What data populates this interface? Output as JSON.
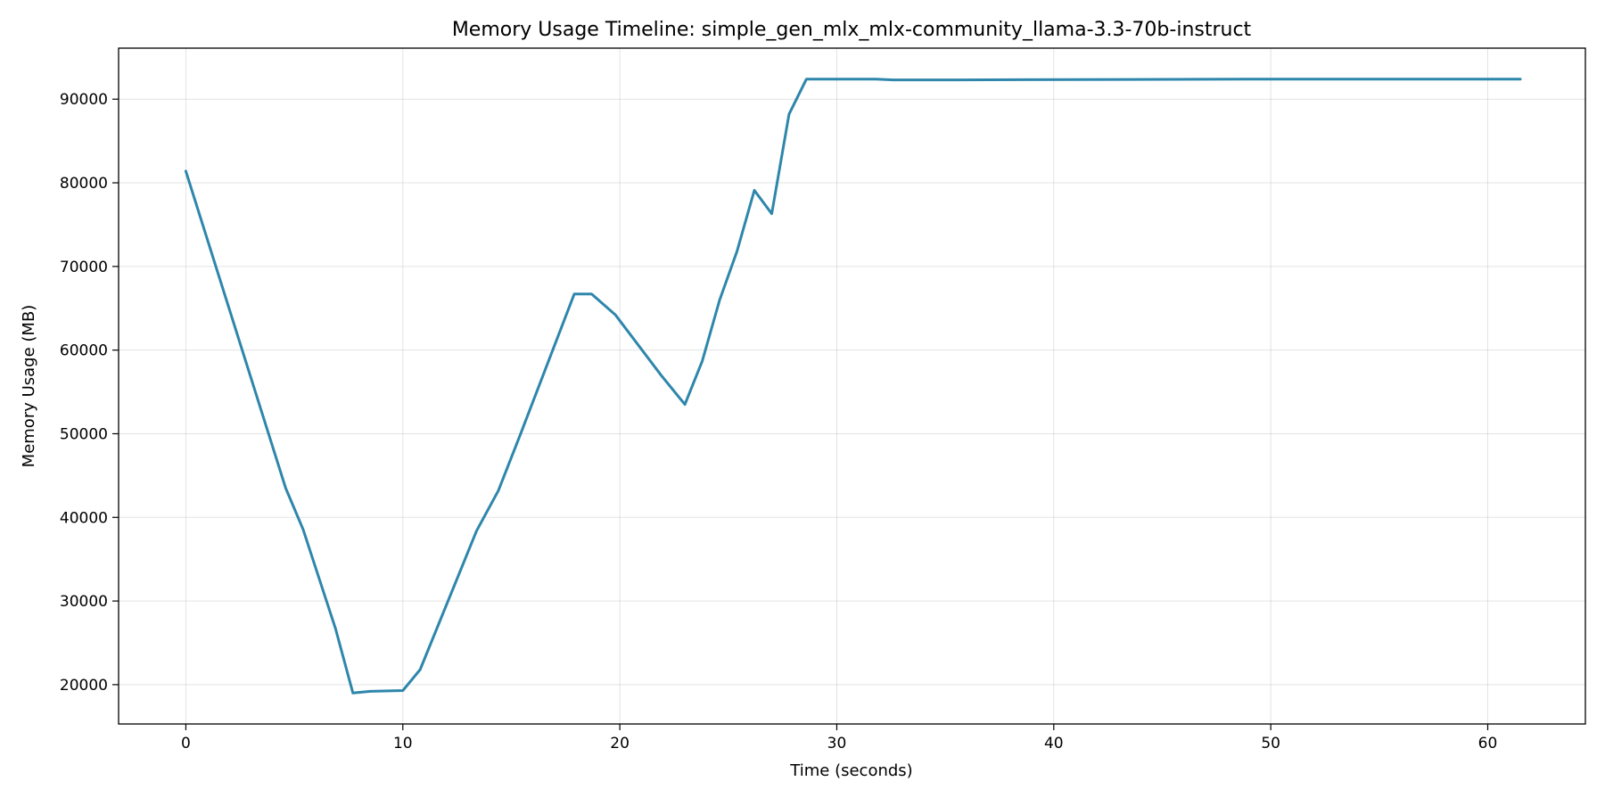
{
  "chart_data": {
    "type": "line",
    "title": "Memory Usage Timeline: simple_gen_mlx_mlx-community_llama-3.3-70b-instruct",
    "xlabel": "Time (seconds)",
    "ylabel": "Memory Usage (MB)",
    "xlim": [
      -3.1,
      64.5
    ],
    "ylim": [
      15300,
      96100
    ],
    "xticks": [
      0,
      10,
      20,
      30,
      40,
      50,
      60
    ],
    "yticks": [
      20000,
      30000,
      40000,
      50000,
      60000,
      70000,
      80000,
      90000
    ],
    "grid": true,
    "line_color": "#2e86ab",
    "series": [
      {
        "x": [
          0,
          4.6,
          5.4,
          6.9,
          7.7,
          8.5,
          10.0,
          10.8,
          13.4,
          14.4,
          15.4,
          17.9,
          18.7,
          19.8,
          21.9,
          23.0,
          23.8,
          24.6,
          25.4,
          26.2,
          27.0,
          27.8,
          28.6,
          31.8,
          32.6,
          35.6,
          50.0,
          61.5
        ],
        "y": [
          81400,
          43500,
          38600,
          26700,
          19000,
          19200,
          19300,
          21800,
          38400,
          43200,
          49800,
          66700,
          66700,
          64200,
          57000,
          53500,
          58700,
          66000,
          71800,
          79100,
          76300,
          88200,
          92400,
          92400,
          92300,
          92300,
          92400,
          92400
        ]
      }
    ]
  }
}
